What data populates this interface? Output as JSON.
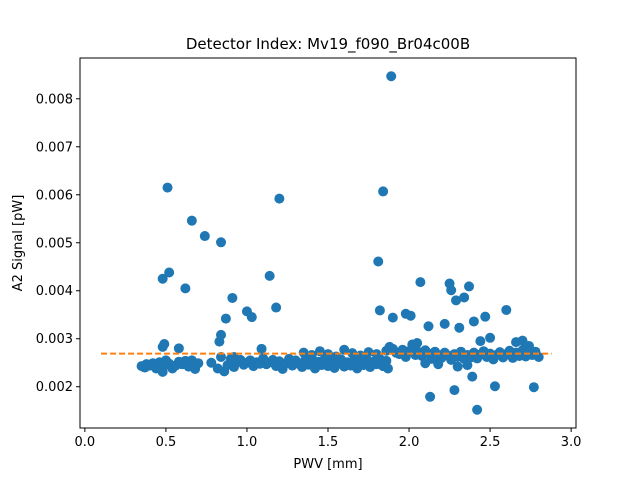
{
  "chart_data": {
    "type": "scatter",
    "title": "Detector Index: Mv19_f090_Br04c00B",
    "xlabel": "PWV [mm]",
    "ylabel": "A2 Signal [pW]",
    "xlim": [
      -0.03,
      3.03
    ],
    "ylim": [
      0.00114,
      0.00885
    ],
    "xticks": [
      0.0,
      0.5,
      1.0,
      1.5,
      2.0,
      2.5,
      3.0
    ],
    "xtick_labels": [
      "0.0",
      "0.5",
      "1.0",
      "1.5",
      "2.0",
      "2.5",
      "3.0"
    ],
    "yticks": [
      0.002,
      0.003,
      0.004,
      0.005,
      0.006,
      0.007,
      0.008
    ],
    "ytick_labels": [
      "0.002",
      "0.003",
      "0.004",
      "0.005",
      "0.006",
      "0.007",
      "0.008"
    ],
    "grid": false,
    "series": [
      {
        "name": "A2 Signal",
        "color": "#1f77b4",
        "marker": "circle",
        "points": [
          [
            0.35,
            0.00243
          ],
          [
            0.37,
            0.0024
          ],
          [
            0.38,
            0.00247
          ],
          [
            0.4,
            0.00244
          ],
          [
            0.42,
            0.00249
          ],
          [
            0.44,
            0.00238
          ],
          [
            0.46,
            0.00251
          ],
          [
            0.48,
            0.00231
          ],
          [
            0.49,
            0.00244
          ],
          [
            0.5,
            0.00255
          ],
          [
            0.52,
            0.00248
          ],
          [
            0.54,
            0.00238
          ],
          [
            0.56,
            0.00244
          ],
          [
            0.58,
            0.00252
          ],
          [
            0.6,
            0.00247
          ],
          [
            0.62,
            0.00254
          ],
          [
            0.64,
            0.00242
          ],
          [
            0.66,
            0.00255
          ],
          [
            0.68,
            0.00237
          ],
          [
            0.7,
            0.00249
          ],
          [
            0.48,
            0.00283
          ],
          [
            0.49,
            0.00289
          ],
          [
            0.58,
            0.0028
          ],
          [
            0.48,
            0.00425
          ],
          [
            0.52,
            0.00438
          ],
          [
            0.62,
            0.00405
          ],
          [
            0.51,
            0.00615
          ],
          [
            0.66,
            0.00546
          ],
          [
            0.74,
            0.00514
          ],
          [
            0.84,
            0.00501
          ],
          [
            0.78,
            0.0025
          ],
          [
            0.82,
            0.00238
          ],
          [
            0.84,
            0.00262
          ],
          [
            0.86,
            0.00232
          ],
          [
            0.88,
            0.00245
          ],
          [
            0.9,
            0.00258
          ],
          [
            0.92,
            0.00241
          ],
          [
            0.94,
            0.00252
          ],
          [
            0.96,
            0.00256
          ],
          [
            0.98,
            0.00246
          ],
          [
            1.0,
            0.0025
          ],
          [
            1.02,
            0.00255
          ],
          [
            1.04,
            0.00243
          ],
          [
            1.06,
            0.00251
          ],
          [
            1.08,
            0.00248
          ],
          [
            1.1,
            0.00259
          ],
          [
            1.12,
            0.00247
          ],
          [
            1.14,
            0.00251
          ],
          [
            1.16,
            0.00256
          ],
          [
            1.18,
            0.00243
          ],
          [
            1.2,
            0.00253
          ],
          [
            1.22,
            0.00237
          ],
          [
            1.24,
            0.00249
          ],
          [
            1.26,
            0.00258
          ],
          [
            1.28,
            0.00244
          ],
          [
            1.3,
            0.00255
          ],
          [
            0.83,
            0.00294
          ],
          [
            0.84,
            0.00308
          ],
          [
            0.87,
            0.00342
          ],
          [
            0.91,
            0.00385
          ],
          [
            1.0,
            0.00357
          ],
          [
            1.03,
            0.00345
          ],
          [
            1.14,
            0.00431
          ],
          [
            1.18,
            0.00365
          ],
          [
            1.2,
            0.00592
          ],
          [
            0.92,
            0.00262
          ],
          [
            1.09,
            0.00279
          ],
          [
            1.32,
            0.00248
          ],
          [
            1.34,
            0.00241
          ],
          [
            1.36,
            0.00256
          ],
          [
            1.38,
            0.00246
          ],
          [
            1.4,
            0.0025
          ],
          [
            1.42,
            0.00238
          ],
          [
            1.44,
            0.00252
          ],
          [
            1.46,
            0.00245
          ],
          [
            1.48,
            0.00258
          ],
          [
            1.5,
            0.00243
          ],
          [
            1.52,
            0.00253
          ],
          [
            1.54,
            0.00239
          ],
          [
            1.56,
            0.00248
          ],
          [
            1.58,
            0.00257
          ],
          [
            1.6,
            0.00242
          ],
          [
            1.62,
            0.00251
          ],
          [
            1.64,
            0.00244
          ],
          [
            1.66,
            0.00255
          ],
          [
            1.68,
            0.00238
          ],
          [
            1.7,
            0.00249
          ],
          [
            1.72,
            0.00245
          ],
          [
            1.74,
            0.00256
          ],
          [
            1.76,
            0.00241
          ],
          [
            1.78,
            0.00252
          ],
          [
            1.8,
            0.00247
          ],
          [
            1.82,
            0.00258
          ],
          [
            1.84,
            0.00243
          ],
          [
            1.86,
            0.00254
          ],
          [
            1.35,
            0.00271
          ],
          [
            1.4,
            0.00266
          ],
          [
            1.45,
            0.00274
          ],
          [
            1.5,
            0.00268
          ],
          [
            1.55,
            0.00263
          ],
          [
            1.6,
            0.00277
          ],
          [
            1.65,
            0.0027
          ],
          [
            1.7,
            0.00265
          ],
          [
            1.75,
            0.00272
          ],
          [
            1.8,
            0.00268
          ],
          [
            1.81,
            0.00461
          ],
          [
            1.82,
            0.00359
          ],
          [
            1.84,
            0.00607
          ],
          [
            1.89,
            0.00847
          ],
          [
            1.86,
            0.00275
          ],
          [
            1.88,
            0.00283
          ],
          [
            1.9,
            0.00279
          ],
          [
            1.92,
            0.00271
          ],
          [
            1.94,
            0.00268
          ],
          [
            1.96,
            0.00277
          ],
          [
            1.98,
            0.00262
          ],
          [
            2.0,
            0.00274
          ],
          [
            2.02,
            0.00281
          ],
          [
            2.04,
            0.00266
          ],
          [
            2.06,
            0.00272
          ],
          [
            2.08,
            0.00264
          ],
          [
            2.1,
            0.00276
          ],
          [
            2.12,
            0.00269
          ],
          [
            2.14,
            0.00258
          ],
          [
            2.16,
            0.00273
          ],
          [
            2.18,
            0.00266
          ],
          [
            2.2,
            0.0026
          ],
          [
            2.22,
            0.00271
          ],
          [
            2.24,
            0.00265
          ],
          [
            2.26,
            0.00256
          ],
          [
            2.28,
            0.00268
          ],
          [
            2.3,
            0.00262
          ],
          [
            2.32,
            0.00273
          ],
          [
            2.34,
            0.00258
          ],
          [
            2.36,
            0.00266
          ],
          [
            2.38,
            0.00261
          ],
          [
            2.4,
            0.00271
          ],
          [
            2.42,
            0.00259
          ],
          [
            2.44,
            0.00267
          ],
          [
            2.46,
            0.00274
          ],
          [
            2.48,
            0.00262
          ],
          [
            2.5,
            0.00269
          ],
          [
            2.52,
            0.00257
          ],
          [
            2.54,
            0.00266
          ],
          [
            2.56,
            0.00272
          ],
          [
            2.58,
            0.00261
          ],
          [
            2.6,
            0.00268
          ],
          [
            2.62,
            0.00275
          ],
          [
            2.64,
            0.0026
          ],
          [
            2.66,
            0.00271
          ],
          [
            2.68,
            0.00264
          ],
          [
            2.7,
            0.00276
          ],
          [
            2.72,
            0.00263
          ],
          [
            2.74,
            0.0027
          ],
          [
            2.76,
            0.00266
          ],
          [
            2.78,
            0.00273
          ],
          [
            2.8,
            0.00262
          ],
          [
            1.87,
            0.00238
          ],
          [
            2.02,
            0.00288
          ],
          [
            2.05,
            0.00291
          ],
          [
            2.1,
            0.00249
          ],
          [
            2.18,
            0.00247
          ],
          [
            2.3,
            0.00242
          ],
          [
            2.36,
            0.00245
          ],
          [
            2.44,
            0.00295
          ],
          [
            2.5,
            0.00302
          ],
          [
            2.66,
            0.00293
          ],
          [
            2.7,
            0.00296
          ],
          [
            2.74,
            0.00285
          ],
          [
            1.9,
            0.00344
          ],
          [
            1.98,
            0.00352
          ],
          [
            2.01,
            0.00348
          ],
          [
            2.07,
            0.00418
          ],
          [
            2.12,
            0.00326
          ],
          [
            2.22,
            0.00331
          ],
          [
            2.25,
            0.00415
          ],
          [
            2.26,
            0.00401
          ],
          [
            2.29,
            0.0038
          ],
          [
            2.31,
            0.00323
          ],
          [
            2.34,
            0.00386
          ],
          [
            2.37,
            0.00409
          ],
          [
            2.4,
            0.00336
          ],
          [
            2.47,
            0.00346
          ],
          [
            2.6,
            0.0036
          ],
          [
            2.13,
            0.00179
          ],
          [
            2.28,
            0.00193
          ],
          [
            2.39,
            0.00221
          ],
          [
            2.42,
            0.00152
          ],
          [
            2.53,
            0.00201
          ],
          [
            2.77,
            0.00199
          ]
        ]
      }
    ],
    "trend_line": {
      "name": "fit",
      "color": "#ff7f0e",
      "style": "dashed",
      "x": [
        0.1,
        2.88
      ],
      "y": [
        0.00269,
        0.00269
      ]
    }
  }
}
